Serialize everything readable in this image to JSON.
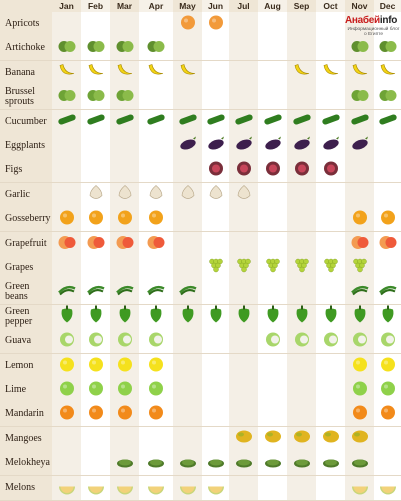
{
  "logo": {
    "name_prefix": "Анабей",
    "name_suffix": "info",
    "tagline": "Информационный блог о Египте"
  },
  "months": [
    "Jan",
    "Feb",
    "Mar",
    "Apr",
    "May",
    "Jun",
    "Jul",
    "Aug",
    "Sep",
    "Oct",
    "Nov",
    "Dec"
  ],
  "rows": [
    {
      "label": "Apricots",
      "icon": "apricot-icon",
      "months": [
        5,
        6
      ]
    },
    {
      "label": "Artichoke",
      "icon": "artichoke-icon",
      "months": [
        1,
        2,
        3,
        4,
        11,
        12
      ]
    },
    {
      "label": "Banana",
      "icon": "banana-icon",
      "months": [
        1,
        2,
        3,
        4,
        5,
        9,
        10,
        11,
        12
      ]
    },
    {
      "label": "Brussel sprouts",
      "icon": "brussels-sprouts-icon",
      "months": [
        1,
        2,
        3,
        11,
        12
      ]
    },
    {
      "label": "Cucumber",
      "icon": "cucumber-icon",
      "months": [
        1,
        2,
        3,
        4,
        5,
        6,
        7,
        8,
        9,
        10,
        11,
        12
      ]
    },
    {
      "label": "Eggplants",
      "icon": "eggplant-icon",
      "months": [
        5,
        6,
        7,
        8,
        9,
        10,
        11
      ]
    },
    {
      "label": "Figs",
      "icon": "fig-icon",
      "months": [
        6,
        7,
        8,
        9,
        10
      ]
    },
    {
      "label": "Garlic",
      "icon": "garlic-icon",
      "months": [
        2,
        3,
        4,
        5,
        6,
        7
      ]
    },
    {
      "label": "Gosseberry",
      "icon": "gooseberry-icon",
      "months": [
        1,
        2,
        3,
        4,
        11,
        12
      ]
    },
    {
      "label": "Grapefruit",
      "icon": "grapefruit-icon",
      "months": [
        1,
        2,
        3,
        4,
        11,
        12
      ]
    },
    {
      "label": "Grapes",
      "icon": "grapes-icon",
      "months": [
        6,
        7,
        8,
        9,
        10,
        11
      ]
    },
    {
      "label": "Green beans",
      "icon": "green-beans-icon",
      "months": [
        1,
        2,
        3,
        4,
        5,
        11,
        12
      ]
    },
    {
      "label": "Green pepper",
      "icon": "green-pepper-icon",
      "months": [
        1,
        2,
        3,
        4,
        5,
        6,
        7,
        8,
        9,
        10,
        11,
        12
      ]
    },
    {
      "label": "Guava",
      "icon": "guava-icon",
      "months": [
        1,
        2,
        3,
        4,
        8,
        9,
        10,
        11,
        12
      ]
    },
    {
      "label": "Lemon",
      "icon": "lemon-icon",
      "months": [
        1,
        2,
        3,
        4,
        11,
        12
      ]
    },
    {
      "label": "Lime",
      "icon": "lime-icon",
      "months": [
        1,
        2,
        3,
        4,
        11,
        12
      ]
    },
    {
      "label": "Mandarin",
      "icon": "mandarin-icon",
      "months": [
        1,
        2,
        3,
        4,
        11,
        12
      ]
    },
    {
      "label": "Mangoes",
      "icon": "mango-icon",
      "months": [
        7,
        8,
        9,
        10,
        11
      ]
    },
    {
      "label": "Melokheya",
      "icon": "molokhia-icon",
      "months": [
        3,
        4,
        5,
        6,
        7,
        8,
        9,
        10,
        11
      ]
    },
    {
      "label": "Melons",
      "icon": "melon-icon",
      "months": [
        1,
        2,
        3,
        4,
        5,
        6,
        11,
        12
      ]
    }
  ],
  "colors": {
    "apricot-icon": "#f29a3a",
    "artichoke-icon": "#5f8f2e",
    "banana-icon": "#f2d316",
    "brussels-sprouts-icon": "#6ea336",
    "cucumber-icon": "#2f7d1f",
    "eggplant-icon": "#3d1f4d",
    "fig-icon": "#7a2e3a",
    "garlic-icon": "#ede3cf",
    "gooseberry-icon": "#f2a21b",
    "grapefruit-icon": "#ef5a3a",
    "grapes-icon": "#b4d43a",
    "green-beans-icon": "#3c8a2a",
    "green-pepper-icon": "#3f9a22",
    "guava-icon": "#a8d66a",
    "lemon-icon": "#f5e11d",
    "lime-icon": "#8fd14a",
    "mandarin-icon": "#f28a1a",
    "mango-icon": "#e0b420",
    "molokhia-icon": "#4f7a2a",
    "melon-icon": "#f2d27a"
  }
}
